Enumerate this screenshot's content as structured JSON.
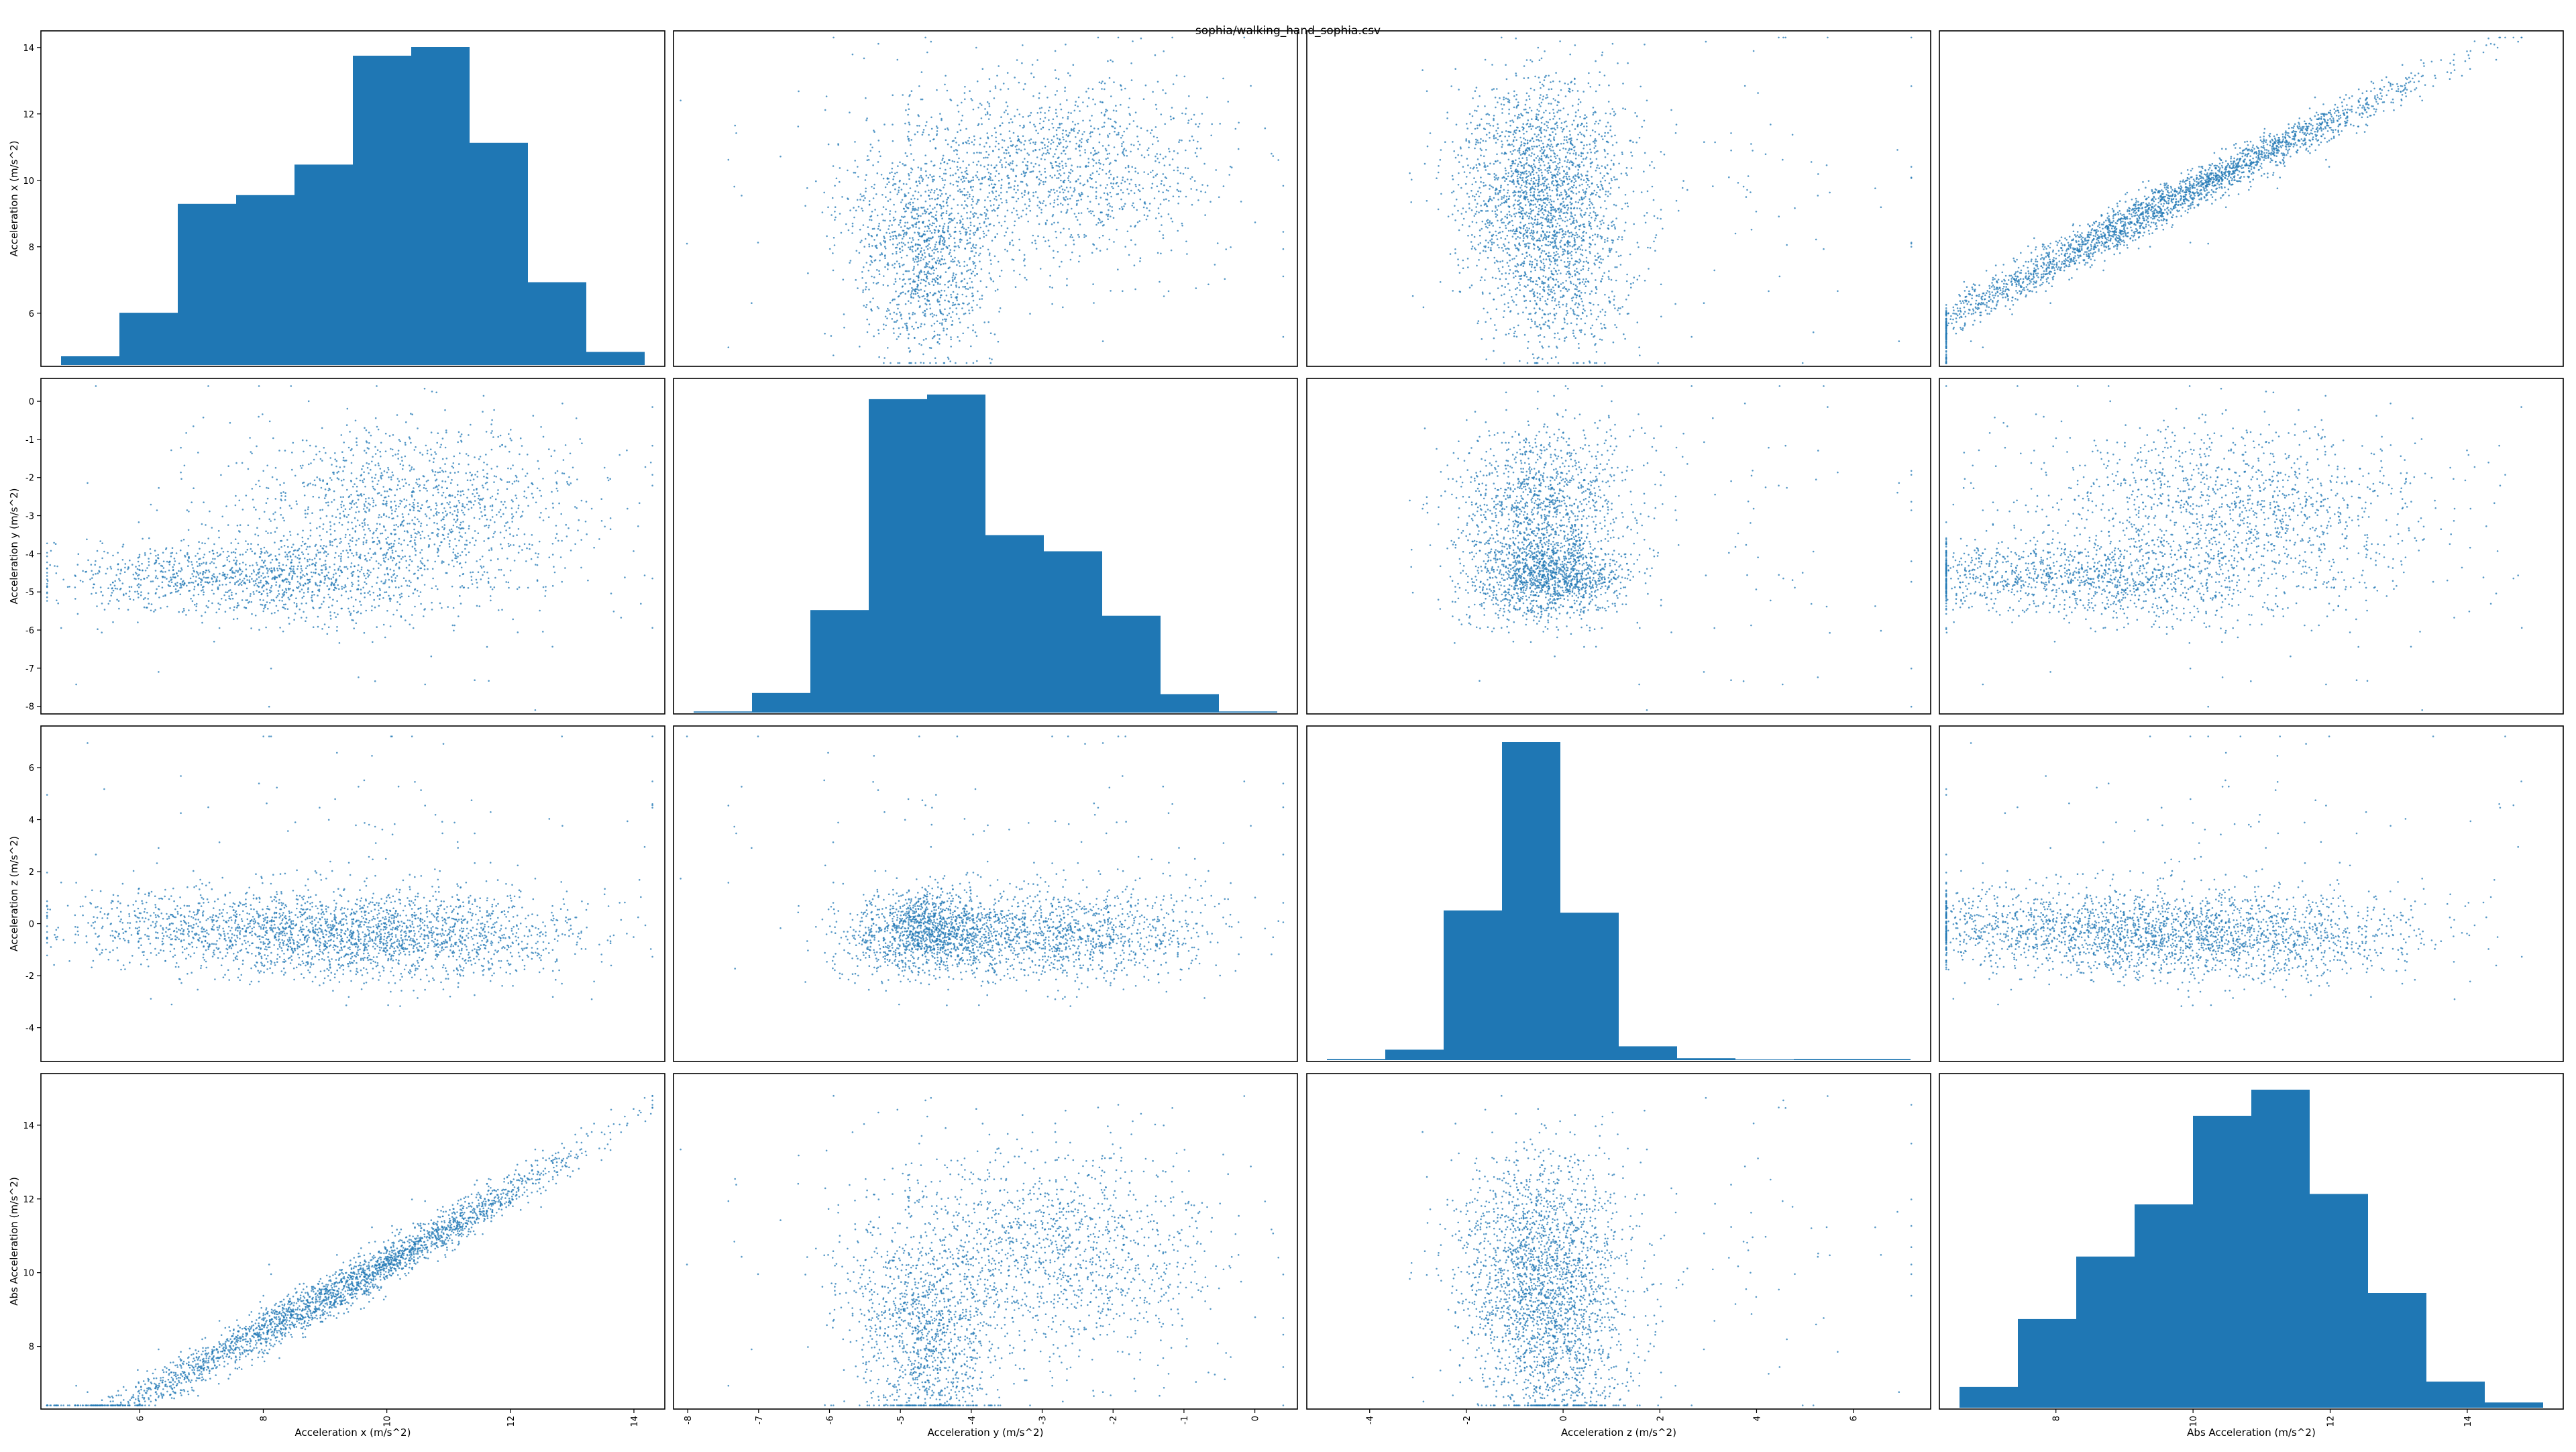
{
  "title": "sophia/walking_hand_sophia.csv",
  "colors": {
    "marker": "#1f77b4",
    "hist": "#1f77b4",
    "frame": "#000000"
  },
  "chart_data": {
    "type": "scatter_matrix",
    "title": "sophia/walking_hand_sophia.csv",
    "variables": [
      {
        "key": "ax",
        "label": "Acceleration x (m/s^2)",
        "range": [
          4.4,
          14.5
        ],
        "ticks": [
          6,
          8,
          10,
          12,
          14
        ]
      },
      {
        "key": "ay",
        "label": "Acceleration y (m/s^2)",
        "range": [
          -8.2,
          0.6
        ],
        "ticks": [
          -8,
          -7,
          -6,
          -5,
          -4,
          -3,
          -2,
          -1,
          0
        ]
      },
      {
        "key": "az",
        "label": "Acceleration z (m/s^2)",
        "range": [
          -5.3,
          7.6
        ],
        "ticks": [
          -4,
          -2,
          0,
          2,
          4,
          6
        ]
      },
      {
        "key": "abs",
        "label": "Abs Acceleration (m/s^2)",
        "range": [
          6.3,
          15.4
        ],
        "ticks": [
          8,
          10,
          12,
          14
        ]
      }
    ],
    "histograms": {
      "ax": {
        "bin_edges": [
          4.4,
          5.37,
          6.34,
          7.31,
          8.28,
          9.25,
          10.22,
          11.19,
          12.16,
          13.13,
          14.1
        ],
        "counts": [
          2,
          12,
          37,
          39,
          46,
          71,
          73,
          51,
          19,
          3
        ]
      },
      "ay": {
        "bin_edges": [
          -8.2,
          -7.36,
          -6.52,
          -5.68,
          -4.84,
          -4.0,
          -3.16,
          -2.32,
          -1.48,
          -0.64,
          0.2
        ],
        "counts": [
          1,
          17,
          89,
          272,
          276,
          154,
          140,
          84,
          16,
          1
        ]
      },
      "az": {
        "bin_edges": [
          -5.3,
          -4.14,
          -2.98,
          -1.82,
          -0.66,
          0.5,
          1.66,
          2.82,
          3.98,
          5.14,
          6.3
        ],
        "counts": [
          3,
          28,
          400,
          850,
          394,
          37,
          5,
          2,
          3,
          3
        ]
      },
      "abs": {
        "bin_edges": [
          6.3,
          7.08,
          7.86,
          8.64,
          9.42,
          10.2,
          10.98,
          11.76,
          12.54,
          13.32,
          14.1
        ],
        "counts": [
          4,
          17,
          29,
          39,
          56,
          61,
          41,
          22,
          5,
          1
        ]
      }
    },
    "scatter_note": "Off-diagonal panels are pairwise scatter plots of ~7000 small points; densest regions: ax 9-12, ay -5 to -2, az -2 to 0.5, abs 9-13; abs strongly linear with ax."
  }
}
